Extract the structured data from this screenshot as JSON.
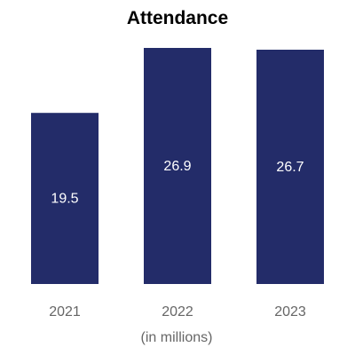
{
  "chart_data": {
    "type": "bar",
    "title": "Attendance",
    "xlabel": "(in millions)",
    "ylabel": "",
    "categories": [
      "2021",
      "2022",
      "2023"
    ],
    "values": [
      19.5,
      26.9,
      26.7
    ],
    "data_labels": [
      "19.5",
      "26.9",
      "26.7"
    ],
    "ylim": [
      0,
      26.9
    ],
    "grid": false,
    "legend": "none",
    "bar_color": "#232c69",
    "label_color": "#ffffff",
    "tick_color": "#666666",
    "title_color": "#000000"
  }
}
